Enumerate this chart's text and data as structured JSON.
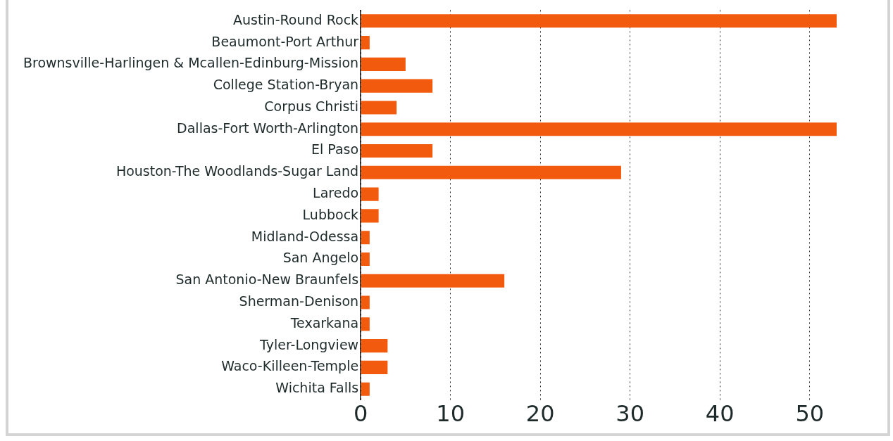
{
  "chart_data": {
    "type": "bar",
    "orientation": "horizontal",
    "categories": [
      "Austin-Round Rock",
      "Beaumont-Port Arthur",
      "Brownsville-Harlingen & Mcallen-Edinburg-Mission",
      "College Station-Bryan",
      "Corpus Christi",
      "Dallas-Fort Worth-Arlington",
      "El Paso",
      "Houston-The Woodlands-Sugar Land",
      "Laredo",
      "Lubbock",
      "Midland-Odessa",
      "San Angelo",
      "San Antonio-New Braunfels",
      "Sherman-Denison",
      "Texarkana",
      "Tyler-Longview",
      "Waco-Killeen-Temple",
      "Wichita Falls"
    ],
    "values": [
      53,
      1,
      5,
      8,
      4,
      53,
      8,
      29,
      2,
      2,
      1,
      1,
      16,
      1,
      1,
      3,
      3,
      1
    ],
    "color": "#f25a0d",
    "xlim": [
      0,
      53
    ],
    "xticks": [
      0,
      10,
      20,
      30,
      40,
      50
    ],
    "grid": "x",
    "legend": false
  }
}
